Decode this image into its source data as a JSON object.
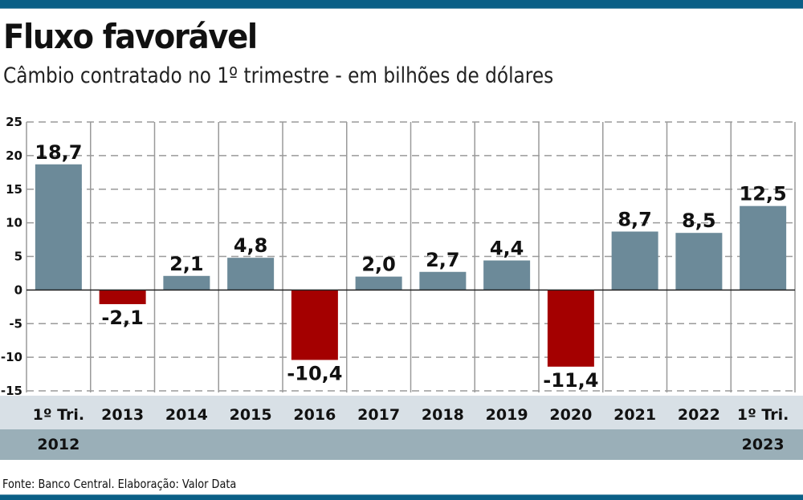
{
  "header": {
    "title": "Fluxo favorável",
    "subtitle": "Câmbio contratado no 1º trimestre - em bilhões de dólares"
  },
  "footer": {
    "source": "Fonte: Banco Central. Elaboração: Valor Data"
  },
  "colors": {
    "brand_bar": "#0b5f86",
    "positive": "#6c8a99",
    "negative": "#a40000",
    "band_light": "#d8e0e6",
    "band_dark": "#9aafb8"
  },
  "chart_data": {
    "type": "bar",
    "title": "Fluxo favorável",
    "subtitle": "Câmbio contratado no 1º trimestre - em bilhões de dólares",
    "xlabel": "",
    "ylabel": "",
    "ylim": [
      -15,
      25
    ],
    "yticks": [
      25,
      20,
      15,
      10,
      5,
      0,
      -5,
      -10,
      -15
    ],
    "ytick_labels": [
      "25",
      "20",
      "15",
      "10",
      "5",
      "0",
      "-5",
      "-10",
      "-15"
    ],
    "grid": true,
    "categories": [
      "1º Tri. 2012",
      "2013",
      "2014",
      "2015",
      "2016",
      "2017",
      "2018",
      "2019",
      "2020",
      "2021",
      "2022",
      "1º Tri. 2023"
    ],
    "category_line1": [
      "1º Tri.",
      "2013",
      "2014",
      "2015",
      "2016",
      "2017",
      "2018",
      "2019",
      "2020",
      "2021",
      "2022",
      "1º Tri."
    ],
    "category_line2": [
      "2012",
      "",
      "",
      "",
      "",
      "",
      "",
      "",
      "",
      "",
      "",
      "2023"
    ],
    "values": [
      18.7,
      -2.1,
      2.1,
      4.8,
      -10.4,
      2.0,
      2.7,
      4.4,
      -11.4,
      8.7,
      8.5,
      12.5
    ],
    "value_labels": [
      "18,7",
      "-2,1",
      "2,1",
      "4,8",
      "-10,4",
      "2,0",
      "2,7",
      "4,4",
      "-11,4",
      "8,7",
      "8,5",
      "12,5"
    ]
  }
}
